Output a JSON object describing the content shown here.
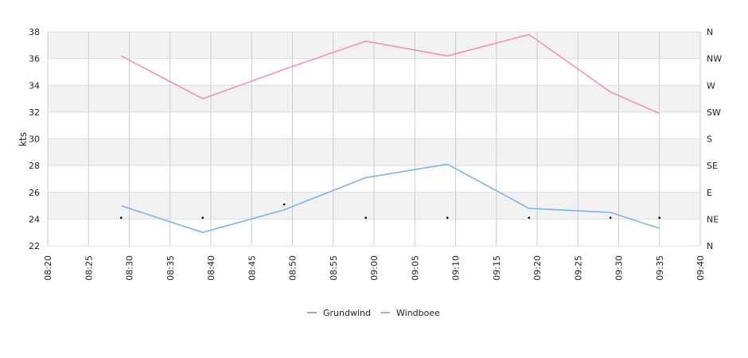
{
  "chart_data": {
    "type": "line",
    "x_ticks": [
      "08:20",
      "08:25",
      "08:30",
      "08:35",
      "08:40",
      "08:45",
      "08:50",
      "08:55",
      "09:00",
      "09:05",
      "09:10",
      "09:15",
      "09:20",
      "09:25",
      "09:30",
      "09:35",
      "09:40"
    ],
    "xlim": [
      "08:20",
      "09:40"
    ],
    "ylabel": "kts",
    "ylim": [
      22,
      38
    ],
    "y_ticks": [
      22,
      24,
      26,
      28,
      30,
      32,
      34,
      36,
      38
    ],
    "y2_ticks": [
      "N",
      "NE",
      "E",
      "SE",
      "S",
      "SW",
      "W",
      "NW",
      "N"
    ],
    "grid": true,
    "legend_position": "bottom-center",
    "series": [
      {
        "name": "Grundwind",
        "color": "#7cb5ec",
        "points": [
          {
            "x": "08:29",
            "y": 25.0
          },
          {
            "x": "08:39",
            "y": 23.0
          },
          {
            "x": "08:49",
            "y": 24.7
          },
          {
            "x": "08:59",
            "y": 27.1
          },
          {
            "x": "09:09",
            "y": 28.1
          },
          {
            "x": "09:19",
            "y": 24.8
          },
          {
            "x": "09:29",
            "y": 24.5
          },
          {
            "x": "09:35",
            "y": 23.3
          }
        ]
      },
      {
        "name": "Windboee",
        "color": "#f28fc0",
        "points": [
          {
            "x": "08:29",
            "y": 36.2
          },
          {
            "x": "08:39",
            "y": 33.0
          },
          {
            "x": "08:49",
            "y": 35.2
          },
          {
            "x": "08:59",
            "y": 37.3
          },
          {
            "x": "09:09",
            "y": 36.2
          },
          {
            "x": "09:19",
            "y": 37.8
          },
          {
            "x": "09:29",
            "y": 33.5
          },
          {
            "x": "09:35",
            "y": 31.9
          }
        ]
      }
    ],
    "direction_markers": [
      {
        "x": "08:29",
        "dir": 24.1
      },
      {
        "x": "08:39",
        "dir": 24.1
      },
      {
        "x": "08:49",
        "dir": 25.1
      },
      {
        "x": "08:59",
        "dir": 24.1
      },
      {
        "x": "09:09",
        "dir": 24.1
      },
      {
        "x": "09:19",
        "dir": 24.1
      },
      {
        "x": "09:29",
        "dir": 24.1
      },
      {
        "x": "09:35",
        "dir": 24.1
      }
    ]
  }
}
